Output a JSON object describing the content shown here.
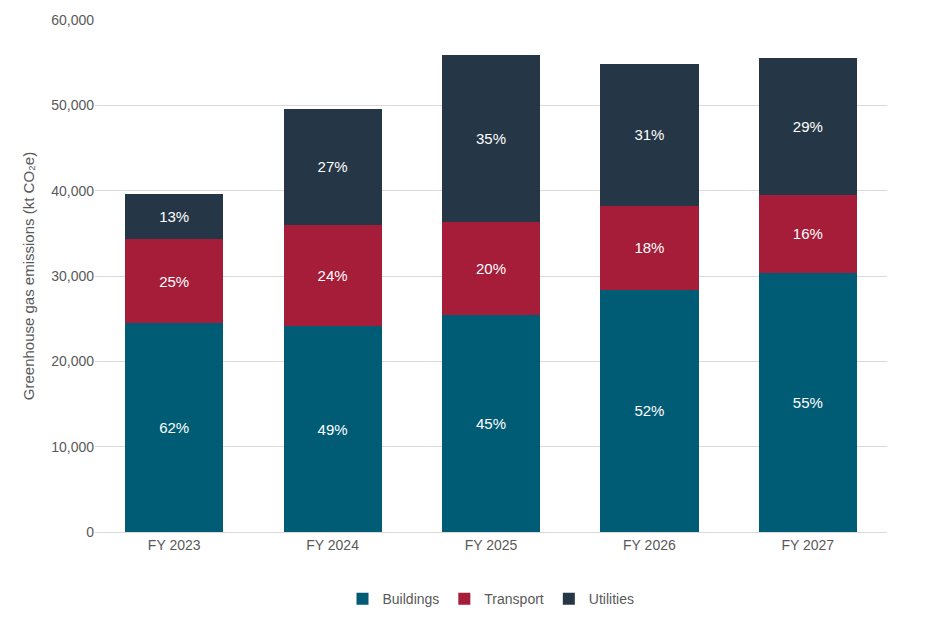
{
  "chart_data": {
    "type": "bar",
    "stacked": true,
    "categories": [
      "FY 2023",
      "FY 2024",
      "FY 2025",
      "FY 2026",
      "FY 2027"
    ],
    "series": [
      {
        "name": "Buildings",
        "color": "#005b75",
        "values": [
          24500,
          24100,
          25400,
          28400,
          30400
        ],
        "share_labels": [
          "62%",
          "49%",
          "45%",
          "52%",
          "55%"
        ]
      },
      {
        "name": "Transport",
        "color": "#a51d38",
        "values": [
          9800,
          11900,
          10900,
          9800,
          9100
        ],
        "share_labels": [
          "25%",
          "24%",
          "20%",
          "18%",
          "16%"
        ]
      },
      {
        "name": "Utilities",
        "color": "#253746",
        "values": [
          5300,
          13600,
          19600,
          16700,
          16100
        ],
        "share_labels": [
          "13%",
          "27%",
          "35%",
          "31%",
          "29%"
        ]
      }
    ],
    "y_label": "Greenhouse gas emissions (kt CO₂e)",
    "ylim": [
      0,
      60000
    ],
    "yticks": [
      0,
      {
        "value": 10000,
        "label": "10,000"
      },
      {
        "value": 20000,
        "label": "20,000"
      },
      {
        "value": 30000,
        "label": "30,000"
      },
      {
        "value": 40000,
        "label": "40,000"
      },
      {
        "value": 50000,
        "label": "50,000"
      },
      {
        "value": 60000,
        "label": "60,000"
      }
    ],
    "grid": true,
    "legend": "bottom"
  }
}
